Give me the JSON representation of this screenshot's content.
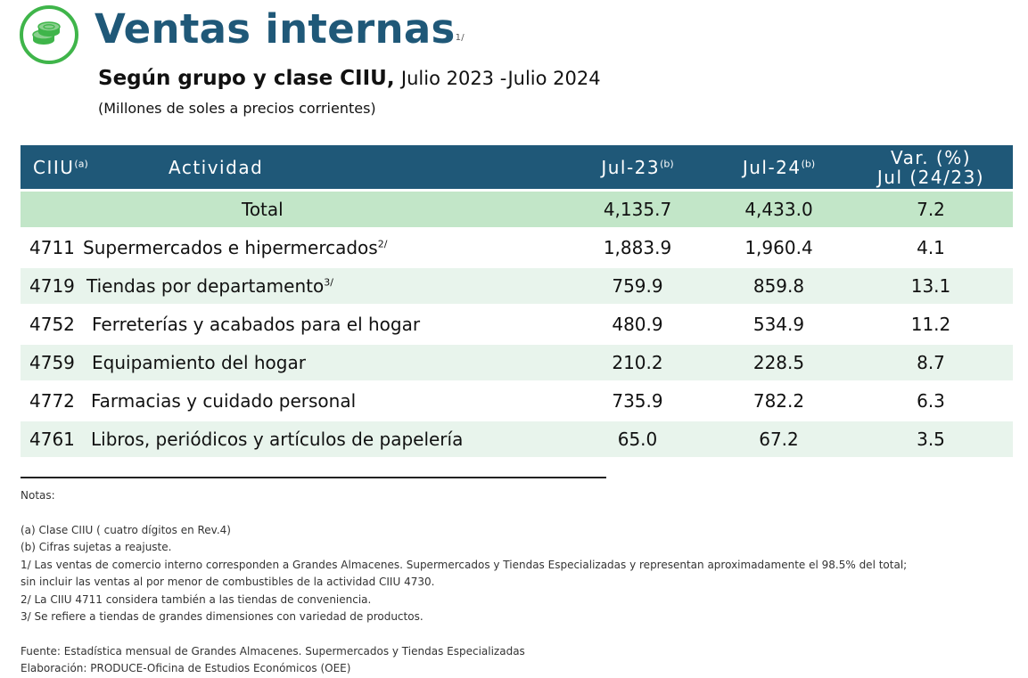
{
  "header": {
    "title": "Ventas internas",
    "title_note": "1/",
    "subtitle_bold": "Según grupo y clase CIIU,",
    "subtitle_period": "Julio 2023 -Julio 2024",
    "units": "(Millones de soles a precios corrientes)"
  },
  "table": {
    "columns": {
      "ciiu": "CIIU",
      "ciiu_note": "(a)",
      "activity": "Actividad",
      "jul23": "Jul-23",
      "jul23_note": "(b)",
      "jul24": "Jul-24",
      "jul24_note": "(b)",
      "var_line1": "Var. (%)",
      "var_line2": "Jul (24/23)"
    },
    "total": {
      "label": "Total",
      "jul23": "4,135.7",
      "jul24": "4,433.0",
      "var": "7.2"
    },
    "rows": [
      {
        "code": "4711",
        "activity": "Supermercados e hipermercados",
        "note": "2/",
        "jul23": "1,883.9",
        "jul24": "1,960.4",
        "var": "4.1"
      },
      {
        "code": "4719",
        "activity": "Tiendas por departamento",
        "note": "3/",
        "jul23": "759.9",
        "jul24": "859.8",
        "var": "13.1"
      },
      {
        "code": "4752",
        "activity": "Ferreterías y acabados para el hogar",
        "note": "",
        "jul23": "480.9",
        "jul24": "534.9",
        "var": "11.2"
      },
      {
        "code": "4759",
        "activity": "Equipamiento del hogar",
        "note": "",
        "jul23": "210.2",
        "jul24": "228.5",
        "var": "8.7"
      },
      {
        "code": "4772",
        "activity": "Farmacias y cuidado personal",
        "note": "",
        "jul23": "735.9",
        "jul24": "782.2",
        "var": "6.3"
      },
      {
        "code": "4761",
        "activity": "Libros, periódicos y artículos de papelería",
        "note": "",
        "jul23": "65.0",
        "jul24": "67.2",
        "var": "3.5"
      }
    ]
  },
  "notes": {
    "heading": "Notas:",
    "a": "(a) Clase CIIU ( cuatro dígitos en Rev.4)",
    "b": "(b) Cifras sujetas a reajuste.",
    "n1_line1": "1/ Las ventas de comercio interno corresponden a Grandes Almacenes. Supermercados y Tiendas Especializadas y representan aproximadamente el 98.5% del total;",
    "n1_line2": "sin incluir las ventas al por menor de combustibles de la actividad CIIU 4730.",
    "n2": "2/ La CIIU 4711 considera también a las tiendas de conveniencia.",
    "n3": "3/ Se refiere a tiendas de grandes dimensiones con variedad de productos.",
    "source": "Fuente: Estadística mensual  de  Grandes Almacenes. Supermercados y Tiendas Especializadas",
    "elaboration": "Elaboración: PRODUCE-Oficina de Estudios Económicos (OEE)"
  },
  "icon": "coins-icon",
  "colors": {
    "title": "#1f5878",
    "header_bg": "#1f5878",
    "total_bg": "#c2e6c8",
    "stripe_bg": "#e8f4ec",
    "icon_green": "#3fb54a"
  }
}
